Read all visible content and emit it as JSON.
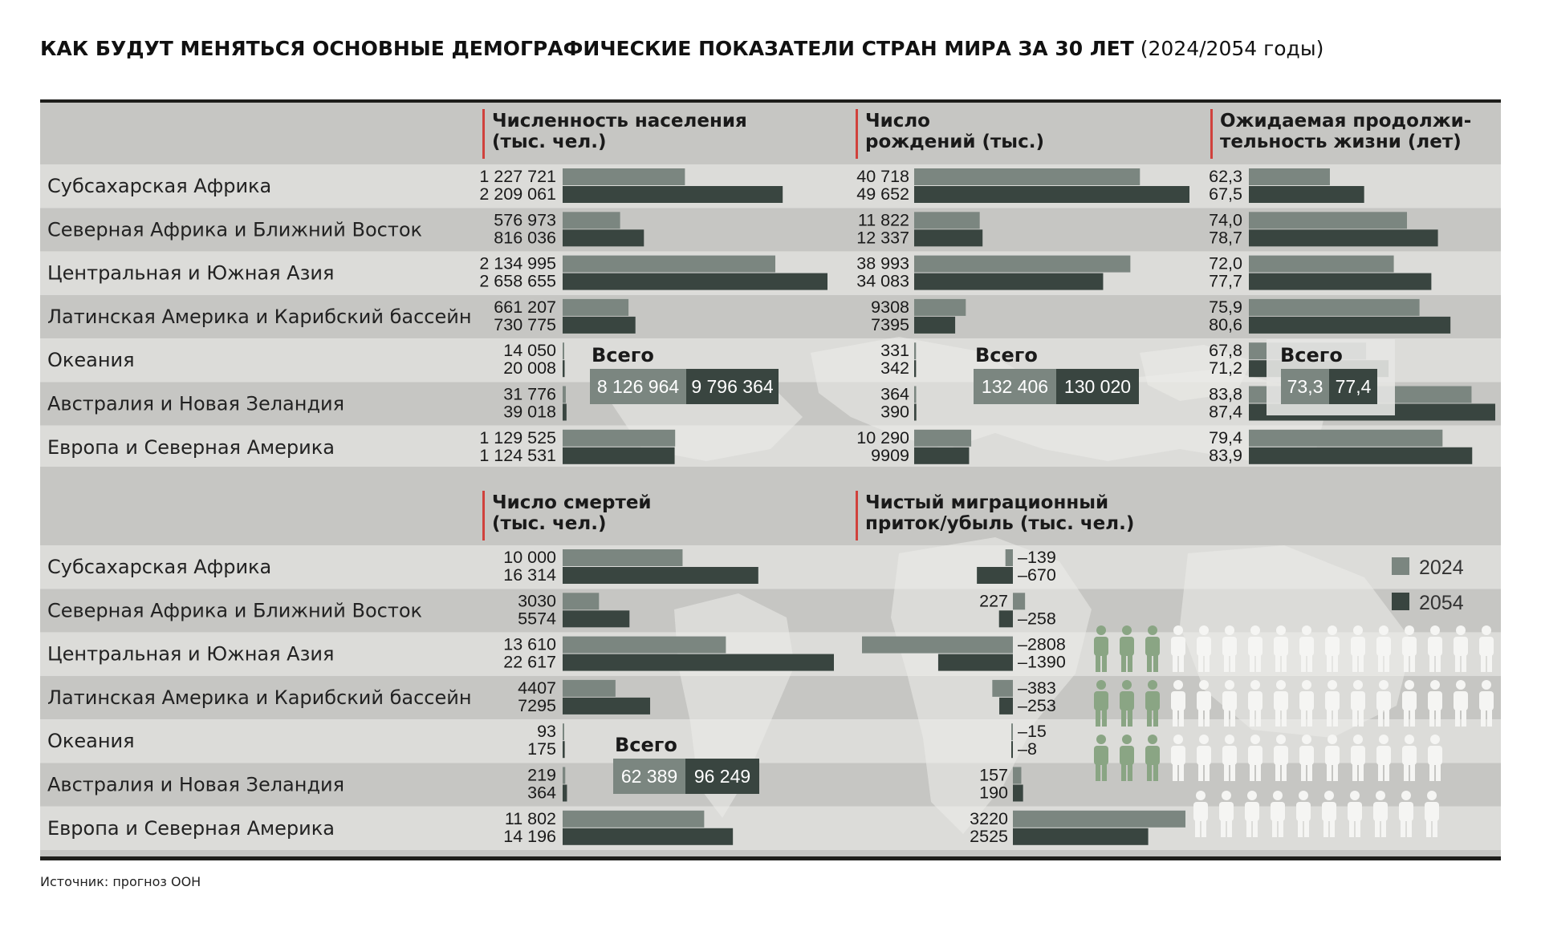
{
  "title": "КАК БУДУТ МЕНЯТЬСЯ ОСНОВНЫЕ ДЕМОГРАФИЧЕСКИЕ ПОКАЗАТЕЛИ СТРАН МИРА ЗА 30 ЛЕТ",
  "subtitle": "(2024/2054 годы)",
  "source": "Источник: прогноз ООН",
  "colors": {
    "y2024": "#7b8680",
    "y2054": "#394540",
    "accent": "#d0413c",
    "band_dark": "#c6c6c3",
    "band_light": "#dcdcd9"
  },
  "legend": {
    "y2024": "2024",
    "y2054": "2054"
  },
  "total_label": "Всего",
  "regions": [
    "Субсахарская Африка",
    "Северная Африка и Ближний Восток",
    "Центральная и Южная Азия",
    "Латинская Америка и Карибский бассейн",
    "Океания",
    "Австралия и Новая Зеландия",
    "Европа и Северная Америка"
  ],
  "chart_data": [
    {
      "type": "bar",
      "title": "Численность населения (тыс. чел.)",
      "title_lines": [
        "Численность населения",
        "(тыс. чел.)"
      ],
      "categories": [
        "Субсахарская Африка",
        "Северная Африка и Ближний Восток",
        "Центральная и Южная Азия",
        "Латинская Америка и Карибский бассейн",
        "Океания",
        "Австралия и Новая Зеландия",
        "Европа и Северная Америка"
      ],
      "series": [
        {
          "name": "2024",
          "values": [
            1227721,
            576973,
            2134995,
            661207,
            14050,
            31776,
            1129525
          ],
          "labels": [
            "1 227 721",
            "576 973",
            "2 134 995",
            "661 207",
            "14 050",
            "31 776",
            "1 129 525"
          ]
        },
        {
          "name": "2054",
          "values": [
            2209061,
            816036,
            2658655,
            730775,
            20008,
            39018,
            1124531
          ],
          "labels": [
            "2 209 061",
            "816 036",
            "2 658 655",
            "730 775",
            "20 008",
            "39 018",
            "1 124 531"
          ]
        }
      ],
      "max": 2658655,
      "total": {
        "y2024": "8 126 964",
        "y2054": "9 796 364"
      }
    },
    {
      "type": "bar",
      "title": "Число рождений (тыс.)",
      "title_lines": [
        "Число",
        "рождений (тыс.)"
      ],
      "categories": [
        "Субсахарская Африка",
        "Северная Африка и Ближний Восток",
        "Центральная и Южная Азия",
        "Латинская Америка и Карибский бассейн",
        "Океания",
        "Австралия и Новая Зеландия",
        "Европа и Северная Америка"
      ],
      "series": [
        {
          "name": "2024",
          "values": [
            40718,
            11822,
            38993,
            9308,
            331,
            364,
            10290
          ],
          "labels": [
            "40 718",
            "11 822",
            "38 993",
            "9308",
            "331",
            "364",
            "10 290"
          ]
        },
        {
          "name": "2054",
          "values": [
            49652,
            12337,
            34083,
            7395,
            342,
            390,
            9909
          ],
          "labels": [
            "49 652",
            "12 337",
            "34 083",
            "7395",
            "342",
            "390",
            "9909"
          ]
        }
      ],
      "max": 49652,
      "total": {
        "y2024": "132 406",
        "y2054": "130 020"
      }
    },
    {
      "type": "bar",
      "title": "Ожидаемая продолжительность жизни (лет)",
      "title_lines": [
        "Ожидаемая продолжи-",
        "тельность жизни (лет)"
      ],
      "categories": [
        "Субсахарская Африка",
        "Северная Африка и Ближний Восток",
        "Центральная и Южная Азия",
        "Латинская Америка и Карибский бассейн",
        "Океания",
        "Австралия и Новая Зеландия",
        "Европа и Северная Америка"
      ],
      "series": [
        {
          "name": "2024",
          "values": [
            62.3,
            74.0,
            72.0,
            75.9,
            67.8,
            83.8,
            79.4
          ],
          "labels": [
            "62,3",
            "74,0",
            "72,0",
            "75,9",
            "67,8",
            "83,8",
            "79,4"
          ]
        },
        {
          "name": "2054",
          "values": [
            67.5,
            78.7,
            77.7,
            80.6,
            71.2,
            87.4,
            83.9
          ],
          "labels": [
            "67,5",
            "78,7",
            "77,7",
            "80,6",
            "71,2",
            "87,4",
            "83,9"
          ]
        }
      ],
      "max": 87.4,
      "total": {
        "y2024": "73,3",
        "y2054": "77,4"
      }
    },
    {
      "type": "bar",
      "title": "Число смертей (тыс. чел.)",
      "title_lines": [
        "Число смертей",
        "(тыс. чел.)"
      ],
      "categories": [
        "Субсахарская Африка",
        "Северная Африка и Ближний Восток",
        "Центральная и Южная Азия",
        "Латинская Америка и Карибский бассейн",
        "Океания",
        "Австралия и Новая Зеландия",
        "Европа и Северная Америка"
      ],
      "series": [
        {
          "name": "2024",
          "values": [
            10000,
            3030,
            13610,
            4407,
            93,
            219,
            11802
          ],
          "labels": [
            "10 000",
            "3030",
            "13 610",
            "4407",
            "93",
            "219",
            "11 802"
          ]
        },
        {
          "name": "2054",
          "values": [
            16314,
            5574,
            22617,
            7295,
            175,
            364,
            14196
          ],
          "labels": [
            "16 314",
            "5574",
            "22 617",
            "7295",
            "175",
            "364",
            "14 196"
          ]
        }
      ],
      "max": 22617,
      "total": {
        "y2024": "62 389",
        "y2054": "96 249"
      }
    },
    {
      "type": "bar",
      "title": "Чистый миграционный приток/убыль (тыс. чел.)",
      "title_lines": [
        "Чистый миграционный",
        "приток/убыль (тыс. чел.)"
      ],
      "categories": [
        "Субсахарская Африка",
        "Северная Африка и Ближний Восток",
        "Центральная и Южная Азия",
        "Латинская Америка и Карибский бассейн",
        "Океания",
        "Австралия и Новая Зеландия",
        "Европа и Северная Америка"
      ],
      "series": [
        {
          "name": "2024",
          "values": [
            -139,
            227,
            -2808,
            -383,
            -15,
            157,
            3220
          ],
          "labels": [
            "–139",
            "227",
            "–2808",
            "–383",
            "–15",
            "157",
            "3220"
          ]
        },
        {
          "name": "2054",
          "values": [
            -670,
            -258,
            -1390,
            -253,
            -8,
            190,
            2525
          ],
          "labels": [
            "–670",
            "–258",
            "–1390",
            "–253",
            "–8",
            "190",
            "2525"
          ]
        }
      ],
      "max": 3220
    }
  ]
}
